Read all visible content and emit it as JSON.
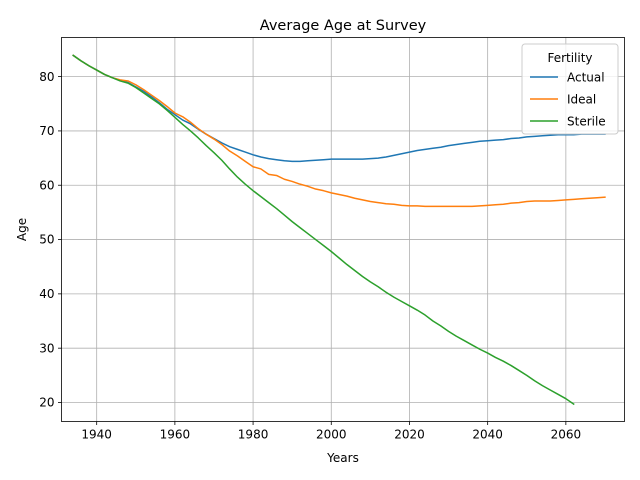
{
  "chart_data": {
    "type": "line",
    "title": "Average Age at Survey",
    "xlabel": "Years",
    "ylabel": "Age",
    "xlim": [
      1931,
      2075
    ],
    "ylim": [
      16.5,
      87.2
    ],
    "xticks": [
      1940,
      1960,
      1980,
      2000,
      2020,
      2040,
      2060
    ],
    "yticks": [
      20,
      30,
      40,
      50,
      60,
      70,
      80
    ],
    "grid": true,
    "legend": {
      "title": "Fertility",
      "position": "top-right"
    },
    "series": [
      {
        "name": "Actual",
        "color": "#1f77b4",
        "x": [
          1934,
          1936,
          1938,
          1940,
          1942,
          1944,
          1946,
          1948,
          1950,
          1952,
          1954,
          1956,
          1958,
          1960,
          1962,
          1964,
          1966,
          1968,
          1970,
          1972,
          1974,
          1976,
          1978,
          1980,
          1982,
          1984,
          1986,
          1988,
          1990,
          1992,
          1994,
          1996,
          1998,
          2000,
          2002,
          2004,
          2006,
          2008,
          2010,
          2012,
          2014,
          2016,
          2018,
          2020,
          2022,
          2024,
          2026,
          2028,
          2030,
          2032,
          2034,
          2036,
          2038,
          2040,
          2042,
          2044,
          2046,
          2048,
          2050,
          2052,
          2054,
          2056,
          2058,
          2060,
          2062,
          2064,
          2066,
          2068,
          2070
        ],
        "y": [
          83.9,
          82.9,
          82.0,
          81.2,
          80.4,
          79.8,
          79.3,
          78.9,
          78.1,
          77.3,
          76.3,
          75.2,
          74.0,
          73.0,
          72.0,
          71.3,
          70.3,
          69.4,
          68.6,
          67.8,
          67.1,
          66.6,
          66.1,
          65.6,
          65.2,
          64.9,
          64.7,
          64.5,
          64.4,
          64.4,
          64.5,
          64.6,
          64.7,
          64.8,
          64.8,
          64.8,
          64.8,
          64.8,
          64.9,
          65.0,
          65.2,
          65.5,
          65.8,
          66.1,
          66.4,
          66.6,
          66.8,
          67.0,
          67.3,
          67.5,
          67.7,
          67.9,
          68.1,
          68.2,
          68.3,
          68.4,
          68.6,
          68.7,
          68.9,
          69.0,
          69.1,
          69.2,
          69.3,
          69.3,
          69.3,
          69.4,
          69.4,
          69.4,
          69.4
        ]
      },
      {
        "name": "Ideal",
        "color": "#ff7f0e",
        "x": [
          1934,
          1936,
          1938,
          1940,
          1942,
          1944,
          1946,
          1948,
          1950,
          1952,
          1954,
          1956,
          1958,
          1960,
          1962,
          1964,
          1966,
          1968,
          1970,
          1972,
          1974,
          1976,
          1978,
          1980,
          1982,
          1984,
          1986,
          1988,
          1990,
          1992,
          1994,
          1996,
          1998,
          2000,
          2002,
          2004,
          2006,
          2008,
          2010,
          2012,
          2014,
          2016,
          2018,
          2020,
          2022,
          2024,
          2026,
          2028,
          2030,
          2032,
          2034,
          2036,
          2038,
          2040,
          2042,
          2044,
          2046,
          2048,
          2050,
          2052,
          2054,
          2056,
          2058,
          2060,
          2062,
          2064,
          2066,
          2068,
          2070
        ],
        "y": [
          83.9,
          82.9,
          82.0,
          81.2,
          80.4,
          79.8,
          79.4,
          79.2,
          78.5,
          77.6,
          76.6,
          75.6,
          74.5,
          73.3,
          72.6,
          71.6,
          70.4,
          69.4,
          68.5,
          67.5,
          66.3,
          65.4,
          64.4,
          63.4,
          63.0,
          62.0,
          61.8,
          61.1,
          60.7,
          60.2,
          59.8,
          59.3,
          59.0,
          58.6,
          58.3,
          58.0,
          57.6,
          57.3,
          57.0,
          56.8,
          56.6,
          56.5,
          56.3,
          56.2,
          56.2,
          56.1,
          56.1,
          56.1,
          56.1,
          56.1,
          56.1,
          56.1,
          56.2,
          56.3,
          56.4,
          56.5,
          56.7,
          56.8,
          57.0,
          57.1,
          57.1,
          57.1,
          57.2,
          57.3,
          57.4,
          57.5,
          57.6,
          57.7,
          57.8
        ]
      },
      {
        "name": "Sterile",
        "color": "#2ca02c",
        "x": [
          1934,
          1936,
          1938,
          1940,
          1942,
          1944,
          1946,
          1948,
          1950,
          1952,
          1954,
          1956,
          1958,
          1960,
          1962,
          1964,
          1966,
          1968,
          1970,
          1972,
          1974,
          1976,
          1978,
          1980,
          1982,
          1984,
          1986,
          1988,
          1990,
          1992,
          1994,
          1996,
          1998,
          2000,
          2002,
          2004,
          2006,
          2008,
          2010,
          2012,
          2014,
          2016,
          2018,
          2020,
          2022,
          2024,
          2026,
          2028,
          2030,
          2032,
          2034,
          2036,
          2038,
          2040,
          2042,
          2044,
          2046,
          2048,
          2050,
          2052,
          2054,
          2056,
          2058,
          2060,
          2062
        ],
        "y": [
          83.9,
          82.9,
          82.0,
          81.2,
          80.4,
          79.8,
          79.2,
          78.8,
          78.0,
          77.0,
          76.0,
          75.0,
          73.8,
          72.5,
          71.2,
          70.0,
          68.7,
          67.3,
          66.0,
          64.6,
          63.0,
          61.5,
          60.2,
          59.0,
          57.9,
          56.8,
          55.7,
          54.5,
          53.3,
          52.2,
          51.1,
          50.0,
          48.9,
          47.8,
          46.6,
          45.4,
          44.3,
          43.2,
          42.2,
          41.3,
          40.3,
          39.4,
          38.6,
          37.8,
          37.0,
          36.1,
          35.0,
          34.1,
          33.1,
          32.2,
          31.4,
          30.6,
          29.8,
          29.1,
          28.3,
          27.6,
          26.8,
          25.9,
          25.0,
          24.0,
          23.1,
          22.3,
          21.5,
          20.7,
          19.7
        ]
      }
    ]
  }
}
